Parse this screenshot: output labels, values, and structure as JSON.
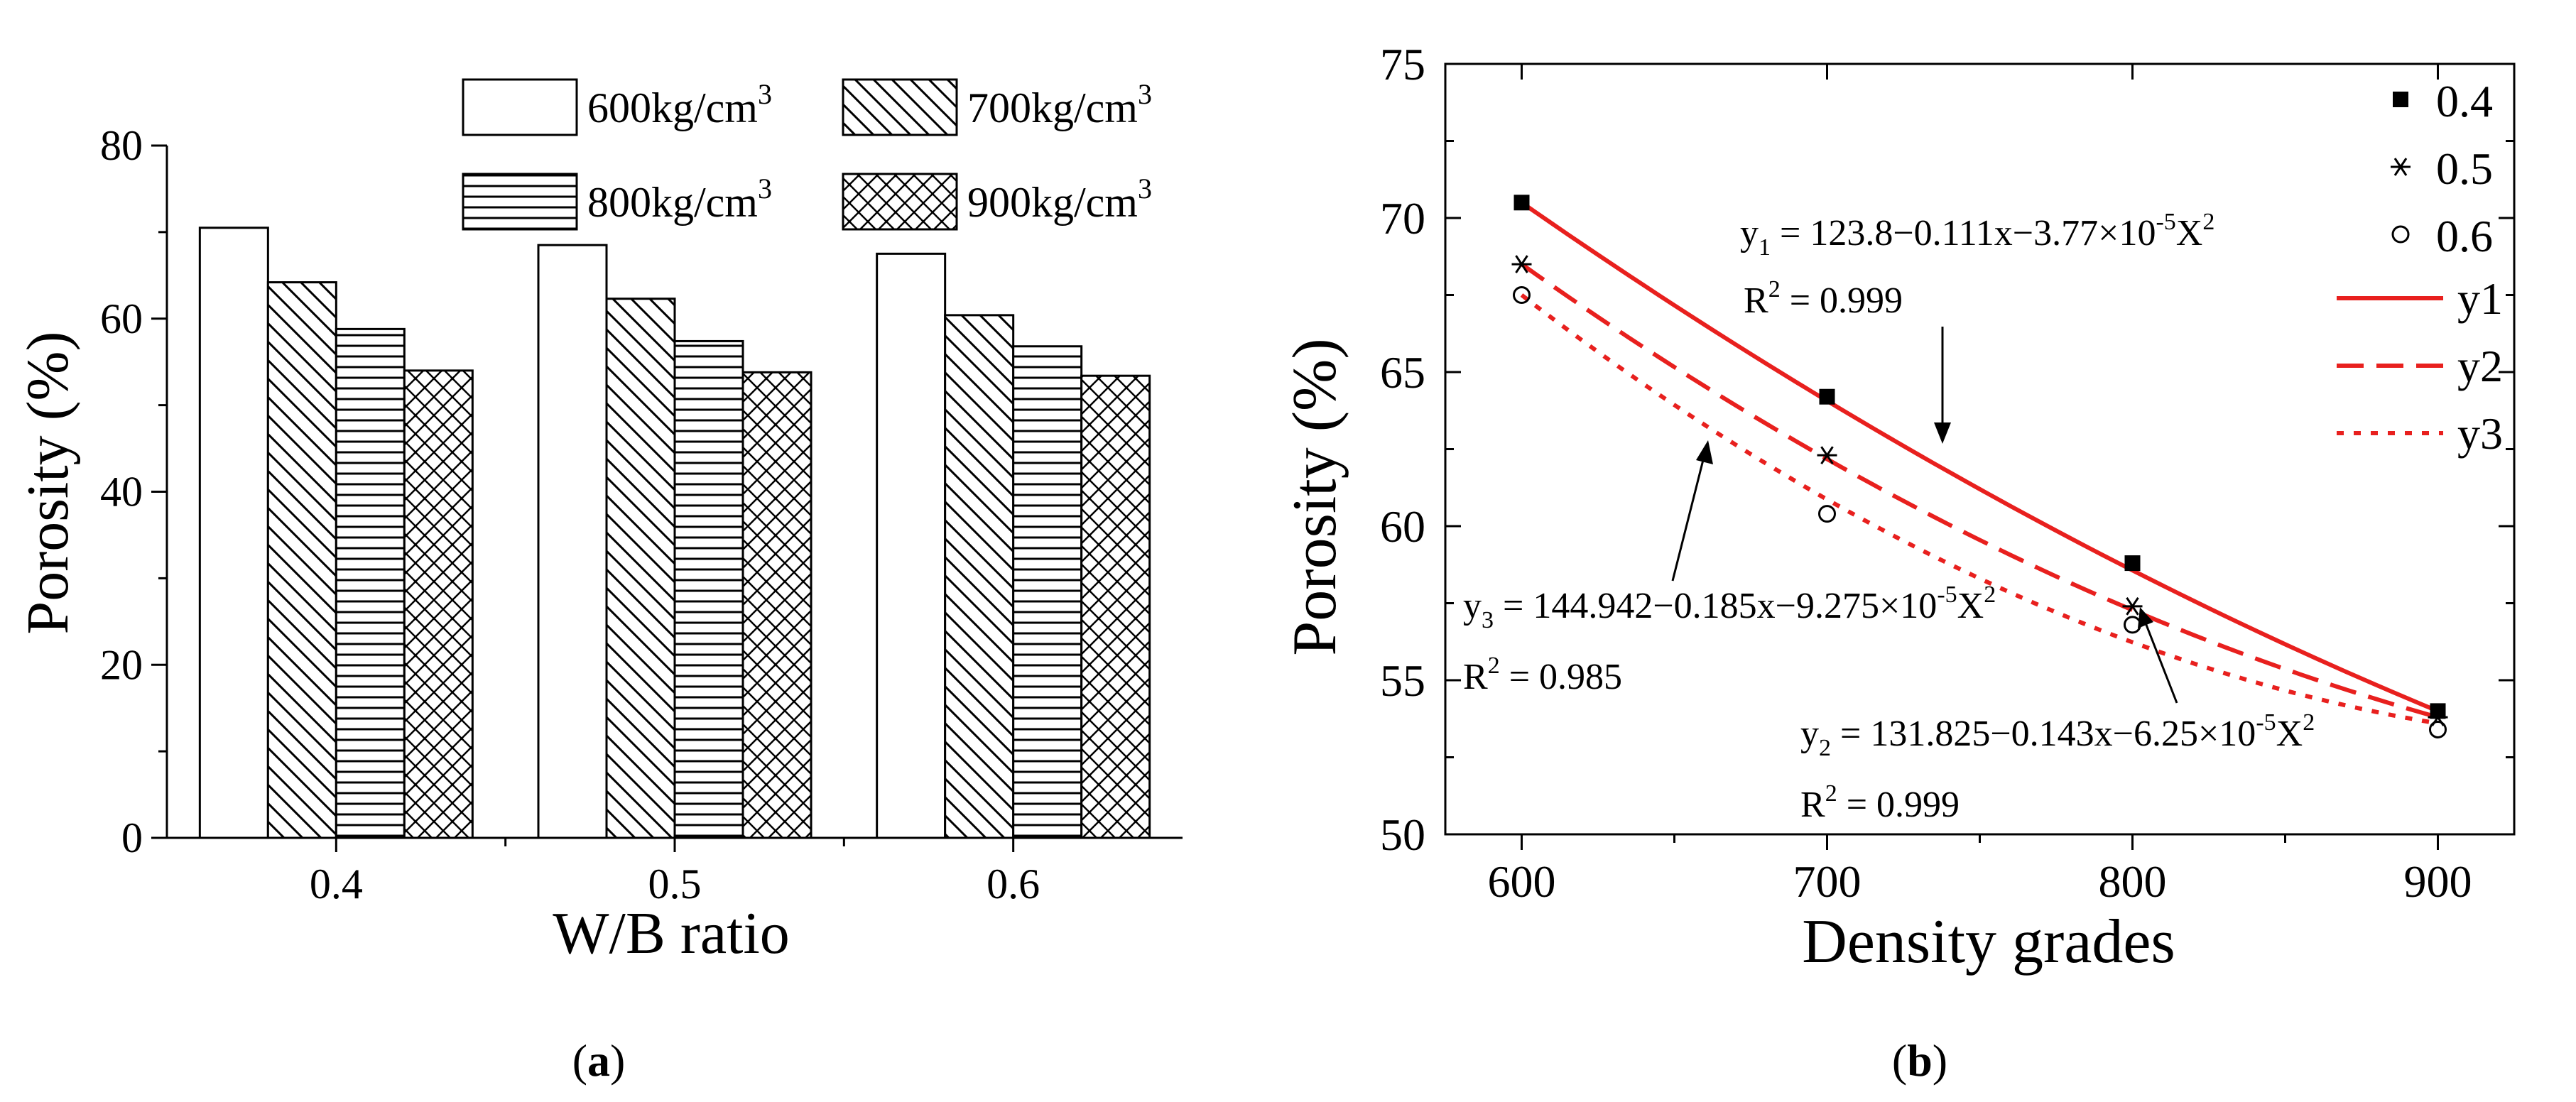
{
  "colors": {
    "axis": "#000000",
    "fit": "#e8201e",
    "background": "#ffffff"
  },
  "chart_data": [
    {
      "id": "a",
      "type": "bar",
      "panel_label": "(a)",
      "panel_letter": "a",
      "xlabel": "W/B ratio",
      "ylabel": "Porosity (%)",
      "categories": [
        "0.4",
        "0.5",
        "0.6"
      ],
      "ylim": [
        0,
        80
      ],
      "yticks": [
        "0",
        "20",
        "40",
        "60",
        "80"
      ],
      "legend_position": "top-right",
      "series": [
        {
          "name": "600kg/cm",
          "sup": "3",
          "pattern": "none",
          "values": [
            70.5,
            68.5,
            67.5
          ]
        },
        {
          "name": "700kg/cm",
          "sup": "3",
          "pattern": "diagonal",
          "values": [
            64.2,
            62.3,
            60.4
          ]
        },
        {
          "name": "800kg/cm",
          "sup": "3",
          "pattern": "horizontal",
          "values": [
            58.8,
            57.4,
            56.8
          ]
        },
        {
          "name": "900kg/cm",
          "sup": "3",
          "pattern": "crosshatch",
          "values": [
            54.0,
            53.8,
            53.4
          ]
        }
      ]
    },
    {
      "id": "b",
      "type": "scatter",
      "panel_label": "(b)",
      "panel_letter": "b",
      "xlabel": "Density grades",
      "ylabel": "Porosity (%)",
      "xlim": [
        575,
        925
      ],
      "ylim": [
        50,
        75
      ],
      "xticks": [
        "600",
        "700",
        "800",
        "900"
      ],
      "yticks": [
        "50",
        "55",
        "60",
        "65",
        "70",
        "75"
      ],
      "x": [
        600,
        700,
        800,
        900
      ],
      "legend_position": "top-right",
      "series": [
        {
          "name": "0.4",
          "marker": "square",
          "values": [
            70.5,
            64.2,
            58.8,
            54.0
          ]
        },
        {
          "name": "0.5",
          "marker": "asterisk",
          "values": [
            68.5,
            62.3,
            57.4,
            53.8
          ]
        },
        {
          "name": "0.6",
          "marker": "circle",
          "values": [
            67.5,
            60.4,
            56.8,
            53.4
          ]
        }
      ],
      "fits": [
        {
          "name": "y1",
          "style": "solid",
          "start": 70.5,
          "end": 54.0
        },
        {
          "name": "y2",
          "style": "dashed",
          "start": 68.5,
          "end": 53.8
        },
        {
          "name": "y3",
          "style": "dotted",
          "start": 67.5,
          "end": 53.6
        }
      ],
      "annotations": [
        {
          "id": "y1",
          "sym": "y",
          "sub": "1",
          "eq": " = 123.8−0.111x−3.77×10",
          "exp": "-5",
          "tail": "X",
          "tailsup": "2",
          "r2pre": "R",
          "r2sup": "2",
          "r2val": " = 0.999"
        },
        {
          "id": "y2",
          "sym": "y",
          "sub": "2",
          "eq": " = 131.825−0.143x−6.25×10",
          "exp": "-5",
          "tail": "X",
          "tailsup": "2",
          "r2pre": "R",
          "r2sup": "2",
          "r2val": " =  0.999"
        },
        {
          "id": "y3",
          "sym": "y",
          "sub": "3",
          "eq": " = 144.942−0.185x−9.275×10",
          "exp": "-5",
          "tail": "X",
          "tailsup": "2",
          "r2pre": "R",
          "r2sup": "2",
          "r2val": " = 0.985"
        }
      ]
    }
  ]
}
